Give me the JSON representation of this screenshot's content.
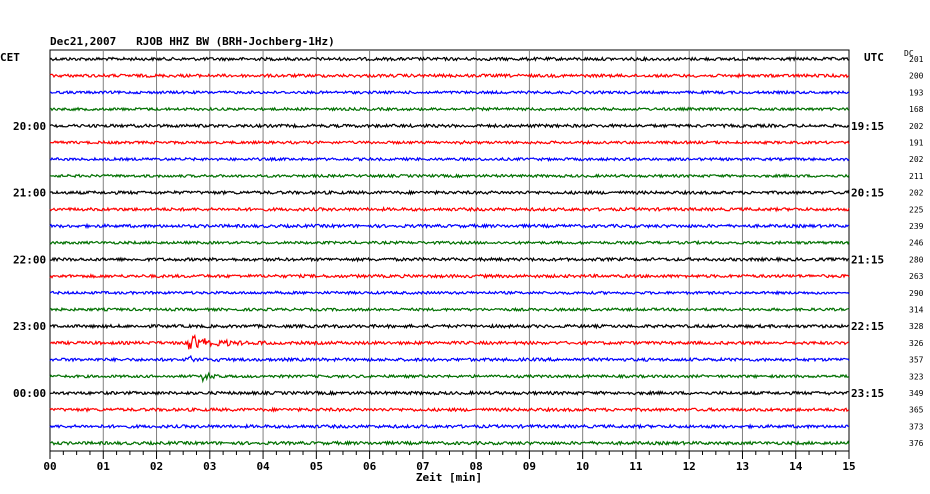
{
  "chart_data": {
    "type": "line",
    "title": "Dec21,2007   RJOB HHZ BW (BRH-Jochberg-1Hz)",
    "left_axis_label": "CET",
    "right_axis_label": "UTC",
    "dc_label": "DC",
    "xlabel": "Zeit [min]",
    "x_ticks": [
      "00",
      "01",
      "02",
      "03",
      "04",
      "05",
      "06",
      "07",
      "08",
      "09",
      "10",
      "11",
      "12",
      "13",
      "14",
      "15"
    ],
    "xlim": [
      0,
      15
    ],
    "grid": true,
    "colors": [
      "#000000",
      "#ff0000",
      "#0000ff",
      "#007000"
    ],
    "left_hour_labels": [
      "20:00",
      "21:00",
      "22:00",
      "23:00",
      "00:00"
    ],
    "right_hour_labels": [
      "19:15",
      "20:15",
      "21:15",
      "22:15",
      "23:15"
    ],
    "traces": [
      {
        "dc": "201",
        "amplitude": 1.5,
        "events": []
      },
      {
        "dc": "200",
        "amplitude": 1.5,
        "events": []
      },
      {
        "dc": "193",
        "amplitude": 1.3,
        "events": []
      },
      {
        "dc": "168",
        "amplitude": 1.3,
        "events": []
      },
      {
        "dc": "202",
        "amplitude": 1.5,
        "events": []
      },
      {
        "dc": "191",
        "amplitude": 1.3,
        "events": [
          {
            "t": 7.7,
            "amp": 2.5,
            "dur": 0.2
          }
        ]
      },
      {
        "dc": "202",
        "amplitude": 1.3,
        "events": []
      },
      {
        "dc": "211",
        "amplitude": 1.3,
        "events": []
      },
      {
        "dc": "202",
        "amplitude": 1.5,
        "events": []
      },
      {
        "dc": "225",
        "amplitude": 1.5,
        "events": []
      },
      {
        "dc": "239",
        "amplitude": 1.5,
        "events": []
      },
      {
        "dc": "246",
        "amplitude": 1.3,
        "events": []
      },
      {
        "dc": "280",
        "amplitude": 1.5,
        "events": []
      },
      {
        "dc": "263",
        "amplitude": 1.5,
        "events": []
      },
      {
        "dc": "290",
        "amplitude": 1.3,
        "events": [
          {
            "t": 4.1,
            "amp": 2.5,
            "dur": 0.15
          }
        ]
      },
      {
        "dc": "314",
        "amplitude": 1.3,
        "events": []
      },
      {
        "dc": "328",
        "amplitude": 1.5,
        "events": []
      },
      {
        "dc": "326",
        "amplitude": 1.5,
        "events": [
          {
            "t": 2.6,
            "amp": 8,
            "dur": 1.5
          }
        ]
      },
      {
        "dc": "357",
        "amplitude": 1.5,
        "events": [
          {
            "t": 2.5,
            "amp": 4,
            "dur": 1.2
          }
        ]
      },
      {
        "dc": "323",
        "amplitude": 1.3,
        "events": [
          {
            "t": 2.85,
            "amp": 5,
            "dur": 0.5
          }
        ]
      },
      {
        "dc": "349",
        "amplitude": 1.5,
        "events": [
          {
            "t": 14.6,
            "amp": 2,
            "dur": 0.2
          }
        ]
      },
      {
        "dc": "365",
        "amplitude": 1.5,
        "events": []
      },
      {
        "dc": "373",
        "amplitude": 1.5,
        "events": []
      },
      {
        "dc": "376",
        "amplitude": 1.5,
        "events": []
      }
    ]
  }
}
